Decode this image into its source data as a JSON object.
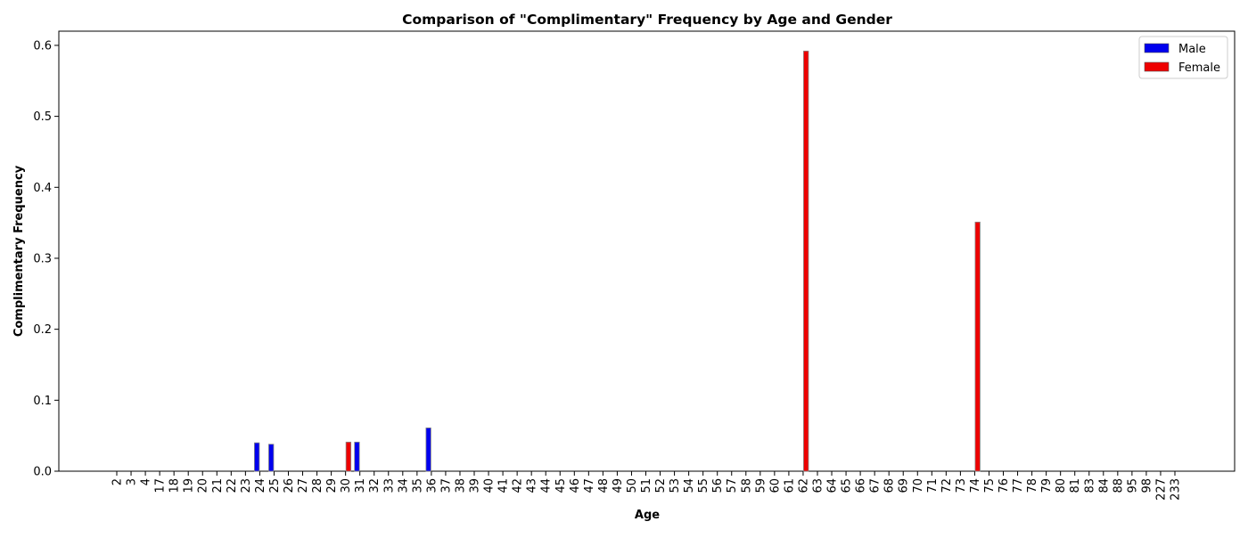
{
  "chart_data": {
    "type": "bar",
    "title": "Comparison of \"Complimentary\" Frequency by Age and Gender",
    "xlabel": "Age",
    "ylabel": "Complimentary Frequency",
    "ylim": [
      0,
      0.62
    ],
    "yticks": [
      "0.0",
      "0.1",
      "0.2",
      "0.3",
      "0.4",
      "0.5",
      "0.6"
    ],
    "categories": [
      "2",
      "3",
      "4",
      "17",
      "18",
      "19",
      "20",
      "21",
      "22",
      "23",
      "24",
      "25",
      "26",
      "27",
      "28",
      "29",
      "30",
      "31",
      "32",
      "33",
      "34",
      "35",
      "36",
      "37",
      "38",
      "39",
      "40",
      "41",
      "42",
      "43",
      "44",
      "45",
      "46",
      "47",
      "48",
      "49",
      "50",
      "51",
      "52",
      "53",
      "54",
      "55",
      "56",
      "57",
      "58",
      "59",
      "60",
      "61",
      "62",
      "63",
      "64",
      "65",
      "66",
      "67",
      "68",
      "69",
      "70",
      "71",
      "72",
      "73",
      "74",
      "75",
      "76",
      "77",
      "78",
      "79",
      "80",
      "81",
      "83",
      "84",
      "88",
      "95",
      "98",
      "227",
      "233"
    ],
    "series": [
      {
        "name": "Male",
        "color": "#0000ee",
        "values": {
          "24": 0.04,
          "25": 0.038,
          "31": 0.041,
          "36": 0.061
        }
      },
      {
        "name": "Female",
        "color": "#ee0000",
        "values": {
          "30": 0.041,
          "62": 0.592,
          "74": 0.351
        }
      }
    ],
    "legend_position": "top-right",
    "grid": false
  }
}
